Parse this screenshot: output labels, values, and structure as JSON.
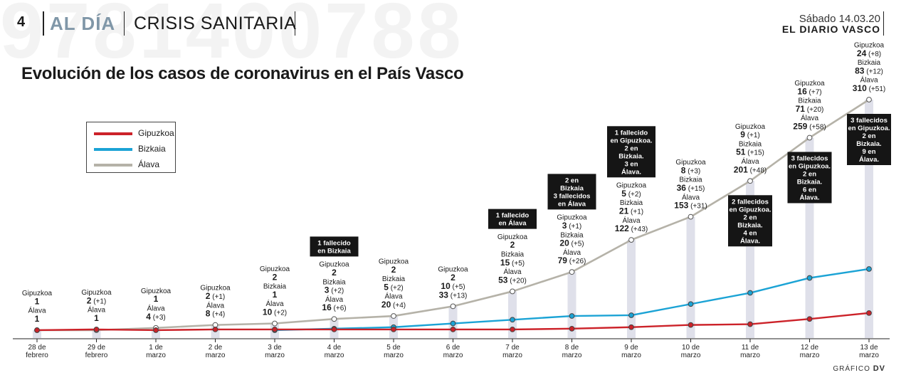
{
  "header": {
    "page_number": "4",
    "section": "AL DÍA",
    "subsection": "CRISIS SANITARIA",
    "date": "Sábado 14.03.20",
    "newspaper": "EL DIARIO VASCO",
    "background_number": "9781400788"
  },
  "credit": {
    "prefix": "GRÁFICO",
    "brand": "DV"
  },
  "legend": [
    {
      "label": "Gipuzkoa",
      "color": "#cc2229"
    },
    {
      "label": "Bizkaia",
      "color": "#1ba3d5"
    },
    {
      "label": "Álava",
      "color": "#b5b2a8"
    }
  ],
  "chart_data": {
    "type": "line",
    "title": "Evolución de los casos de coronavirus en el País Vasco",
    "categories": [
      [
        "28 de",
        "febrero"
      ],
      [
        "29 de",
        "febrero"
      ],
      [
        "1 de",
        "marzo"
      ],
      [
        "2 de",
        "marzo"
      ],
      [
        "3 de",
        "marzo"
      ],
      [
        "4 de",
        "marzo"
      ],
      [
        "5 de",
        "marzo"
      ],
      [
        "6 de",
        "marzo"
      ],
      [
        "7 de",
        "marzo"
      ],
      [
        "8 de",
        "marzo"
      ],
      [
        "9 de",
        "marzo"
      ],
      [
        "10 de",
        "marzo"
      ],
      [
        "11 de",
        "marzo"
      ],
      [
        "12 de",
        "marzo"
      ],
      [
        "13 de",
        "marzo"
      ]
    ],
    "series": [
      {
        "name": "Gipuzkoa",
        "color": "#cc2229",
        "values": [
          1,
          2,
          1,
          2,
          2,
          2,
          2,
          2,
          2,
          3,
          5,
          8,
          9,
          16,
          24
        ]
      },
      {
        "name": "Bizkaia",
        "color": "#1ba3d5",
        "values": [
          null,
          null,
          null,
          null,
          1,
          3,
          5,
          10,
          15,
          20,
          21,
          36,
          51,
          71,
          83
        ]
      },
      {
        "name": "Álava",
        "color": "#b5b2a8",
        "values": [
          1,
          1,
          4,
          8,
          10,
          16,
          20,
          33,
          53,
          79,
          122,
          153,
          201,
          259,
          310
        ]
      }
    ],
    "ylim": [
      0,
      335
    ],
    "annotations": [
      {
        "lines": [
          {
            "t": "Gipuzkoa"
          },
          {
            "t": "1",
            "b": 1
          },
          {
            "t": "Álava"
          },
          {
            "t": "1",
            "b": 1
          }
        ]
      },
      {
        "lines": [
          {
            "t": "Gipuzkoa"
          },
          {
            "t": "2",
            "b": 1,
            "d": "(+1)"
          },
          {
            "t": "Álava"
          },
          {
            "t": "1",
            "b": 1
          }
        ]
      },
      {
        "lines": [
          {
            "t": "Gipuzkoa"
          },
          {
            "t": "1",
            "b": 1
          },
          {
            "t": "Álava"
          },
          {
            "t": "4",
            "b": 1,
            "d": "(+3)"
          }
        ]
      },
      {
        "lines": [
          {
            "t": "Gipuzkoa"
          },
          {
            "t": "2",
            "b": 1,
            "d": "(+1)"
          },
          {
            "t": "Álava"
          },
          {
            "t": "8",
            "b": 1,
            "d": "(+4)"
          }
        ]
      },
      {
        "lines": [
          {
            "t": "Gipuzkoa"
          },
          {
            "t": "2",
            "b": 1
          },
          {
            "t": "Bizkaia"
          },
          {
            "t": "1",
            "b": 1
          },
          {
            "t": "Álava"
          },
          {
            "t": "10",
            "b": 1,
            "d": "(+2)"
          }
        ]
      },
      {
        "box": [
          "1 fallecido",
          "en Bizkaia"
        ],
        "lines": [
          {
            "t": "Gipuzkoa"
          },
          {
            "t": "2",
            "b": 1
          },
          {
            "t": "Bizkaia"
          },
          {
            "t": "3",
            "b": 1,
            "d": "(+2)"
          },
          {
            "t": "Álava"
          },
          {
            "t": "16",
            "b": 1,
            "d": "(+6)"
          }
        ]
      },
      {
        "lines": [
          {
            "t": "Gipuzkoa"
          },
          {
            "t": "2",
            "b": 1
          },
          {
            "t": "Bizkaia"
          },
          {
            "t": "5",
            "b": 1,
            "d": "(+2)"
          },
          {
            "t": "Álava"
          },
          {
            "t": "20",
            "b": 1,
            "d": "(+4)"
          }
        ]
      },
      {
        "lines": [
          {
            "t": "Gipuzkoa"
          },
          {
            "t": "2",
            "b": 1
          },
          {
            "t": "10",
            "b": 1,
            "d": "(+5)"
          },
          {
            "t": "33",
            "b": 1,
            "d": "(+13)"
          }
        ]
      },
      {
        "box": [
          "1 fallecido",
          "en Álava"
        ],
        "lines": [
          {
            "t": "Gipuzkoa"
          },
          {
            "t": "2",
            "b": 1
          },
          {
            "t": "Bizkaia"
          },
          {
            "t": "15",
            "b": 1,
            "d": "(+5)"
          },
          {
            "t": "Álava"
          },
          {
            "t": "53",
            "b": 1,
            "d": "(+20)"
          }
        ]
      },
      {
        "box": [
          "2 en",
          "Bizkaia",
          "3 fallecidos",
          "en Álava"
        ],
        "lines": [
          {
            "t": "Gipuzkoa"
          },
          {
            "t": "3",
            "b": 1,
            "d": "(+1)"
          },
          {
            "t": "Bizkaia"
          },
          {
            "t": "20",
            "b": 1,
            "d": "(+5)"
          },
          {
            "t": "Álava"
          },
          {
            "t": "79",
            "b": 1,
            "d": "(+26)"
          }
        ]
      },
      {
        "box": [
          "1 fallecido",
          "en Gipuzkoa.",
          "2 en",
          "Bizkaia.",
          "3 en",
          "Álava."
        ],
        "lines": [
          {
            "t": "Gipuzkoa"
          },
          {
            "t": "5",
            "b": 1,
            "d": "(+2)"
          },
          {
            "t": "Bizkaia"
          },
          {
            "t": "21",
            "b": 1,
            "d": "(+1)"
          },
          {
            "t": "Álava"
          },
          {
            "t": "122",
            "b": 1,
            "d": "(+43)"
          }
        ]
      },
      {
        "lines": [
          {
            "t": "Gipuzkoa"
          },
          {
            "t": "8",
            "b": 1,
            "d": "(+3)"
          },
          {
            "t": "Bizkaia"
          },
          {
            "t": "36",
            "b": 1,
            "d": "(+15)"
          },
          {
            "t": "Álava"
          },
          {
            "t": "153",
            "b": 1,
            "d": "(+31)"
          }
        ]
      },
      {
        "lines": [
          {
            "t": "Gipuzkoa"
          },
          {
            "t": "9",
            "b": 1,
            "d": "(+1)"
          },
          {
            "t": "Bizkaia"
          },
          {
            "t": "51",
            "b": 1,
            "d": "(+15)"
          },
          {
            "t": "Álava"
          },
          {
            "t": "201",
            "b": 1,
            "d": "(+48)"
          }
        ],
        "box_below": [
          "2 fallecidos",
          "en Gipuzkoa.",
          "2 en",
          "Bizkaia.",
          "4 en",
          "Álava."
        ]
      },
      {
        "lines": [
          {
            "t": "Gipuzkoa"
          },
          {
            "t": "16",
            "b": 1,
            "d": "(+7)"
          },
          {
            "t": "Bizkaia"
          },
          {
            "t": "71",
            "b": 1,
            "d": "(+20)"
          },
          {
            "t": "Álava"
          },
          {
            "t": "259",
            "b": 1,
            "d": "(+58)"
          }
        ],
        "box_below": [
          "3 fallecidos",
          "en Gipuzkoa.",
          "2 en",
          "Bizkaia.",
          "6 en",
          "Álava."
        ]
      },
      {
        "lines": [
          {
            "t": "Gipuzkoa"
          },
          {
            "t": "24",
            "b": 1,
            "d": "(+8)"
          },
          {
            "t": "Bizkaia"
          },
          {
            "t": "83",
            "b": 1,
            "d": "(+12)"
          },
          {
            "t": "Álava"
          },
          {
            "t": "310",
            "b": 1,
            "d": "(+51)"
          }
        ],
        "box_below": [
          "3 fallecidos",
          "en Gipuzkoa.",
          "2 en",
          "Bizkaia.",
          "9 en",
          "Álava."
        ]
      }
    ]
  }
}
